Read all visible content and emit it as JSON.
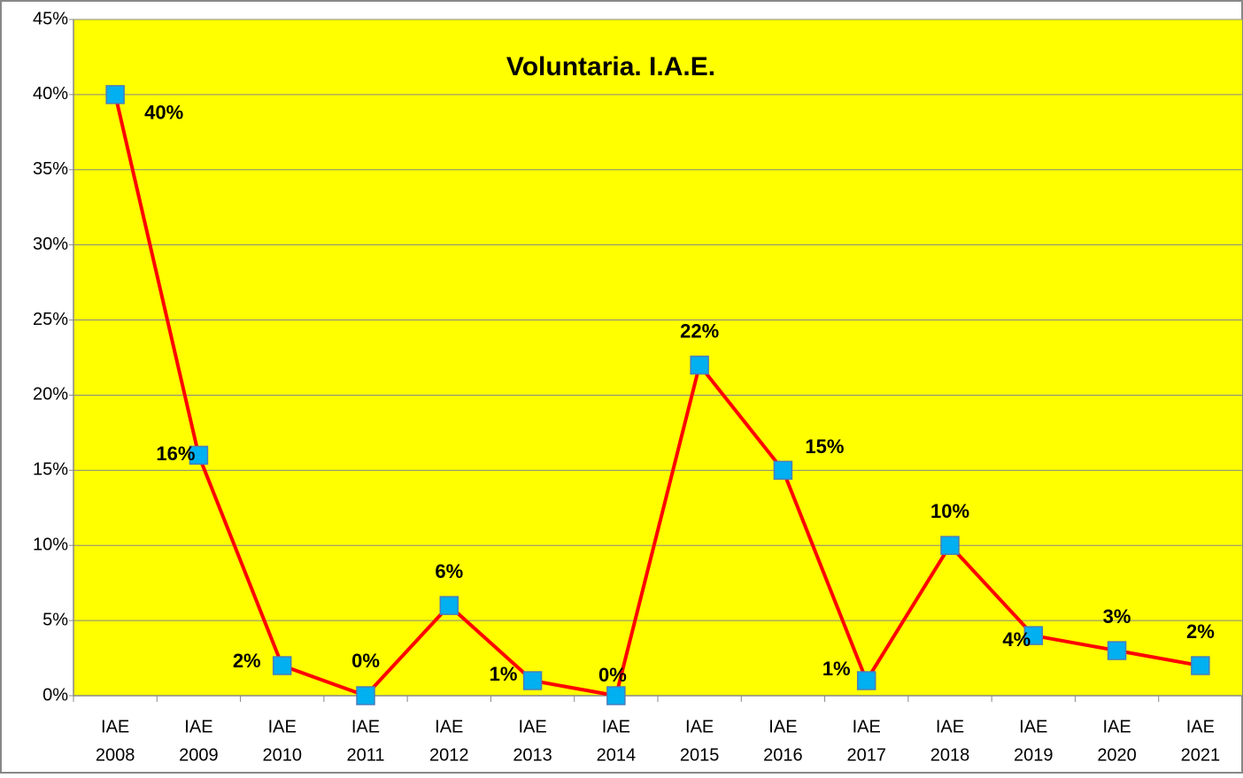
{
  "chart_data": {
    "type": "line",
    "title": "Voluntaria. I.A.E.",
    "categories": [
      [
        "IAE",
        "2008"
      ],
      [
        "IAE",
        "2009"
      ],
      [
        "IAE",
        "2010"
      ],
      [
        "IAE",
        "2011"
      ],
      [
        "IAE",
        "2012"
      ],
      [
        "IAE",
        "2013"
      ],
      [
        "IAE",
        "2014"
      ],
      [
        "IAE",
        "2015"
      ],
      [
        "IAE",
        "2016"
      ],
      [
        "IAE",
        "2017"
      ],
      [
        "IAE",
        "2018"
      ],
      [
        "IAE",
        "2019"
      ],
      [
        "IAE",
        "2020"
      ],
      [
        "IAE",
        "2021"
      ]
    ],
    "series": [
      {
        "color": "#ff0000",
        "marker_color": "#00b0f0",
        "values": [
          40,
          16,
          2,
          0,
          6,
          1,
          0,
          22,
          15,
          1,
          10,
          4,
          3,
          2
        ],
        "value_labels": [
          "40%",
          "16%",
          "2%",
          "0%",
          "6%",
          "1%",
          "0%",
          "22%",
          "15%",
          "1%",
          "10%",
          "4%",
          "3%",
          "2%"
        ]
      }
    ],
    "ylim": [
      0,
      45
    ],
    "yticks": [
      {
        "value": 0,
        "label": "0%"
      },
      {
        "value": 5,
        "label": "5%"
      },
      {
        "value": 10,
        "label": "10%"
      },
      {
        "value": 15,
        "label": "15%"
      },
      {
        "value": 20,
        "label": "20%"
      },
      {
        "value": 25,
        "label": "25%"
      },
      {
        "value": 30,
        "label": "30%"
      },
      {
        "value": 35,
        "label": "35%"
      },
      {
        "value": 40,
        "label": "40%"
      },
      {
        "value": 45,
        "label": "45%"
      }
    ],
    "grid": true,
    "plot_background": "#ffff00"
  }
}
